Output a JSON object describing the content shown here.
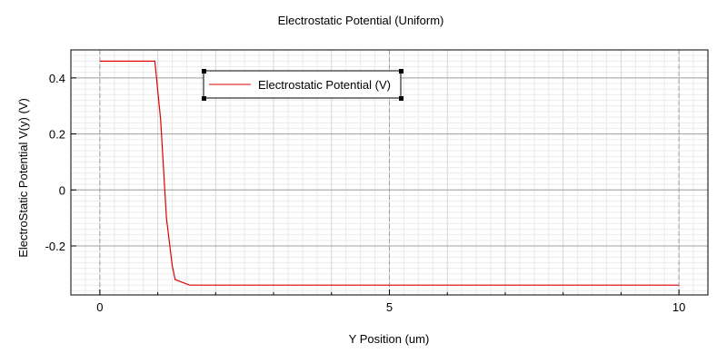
{
  "chart_data": {
    "type": "line",
    "title": "Electrostatic Potential (Uniform)",
    "xlabel": "Y Position (um)",
    "ylabel": "ElectroStatic Potential V(y) (V)",
    "xlim": [
      -0.5,
      10.5
    ],
    "ylim": [
      -0.375,
      0.5
    ],
    "xticks": [
      0,
      5,
      10
    ],
    "xtick_labels": [
      "0",
      "5",
      "10"
    ],
    "yticks": [
      -0.2,
      0,
      0.2,
      0.4
    ],
    "ytick_labels": [
      "-0.2",
      "0",
      "0.2",
      "0.4"
    ],
    "grid": true,
    "legend_position": "top-left",
    "series": [
      {
        "name": "Electrostatic Potential (V)",
        "color": "#e00000",
        "x": [
          0,
          0.95,
          1.05,
          1.15,
          1.25,
          1.3,
          1.55,
          10
        ],
        "y": [
          0.46,
          0.46,
          0.25,
          -0.1,
          -0.27,
          -0.32,
          -0.34,
          -0.34
        ]
      }
    ]
  }
}
